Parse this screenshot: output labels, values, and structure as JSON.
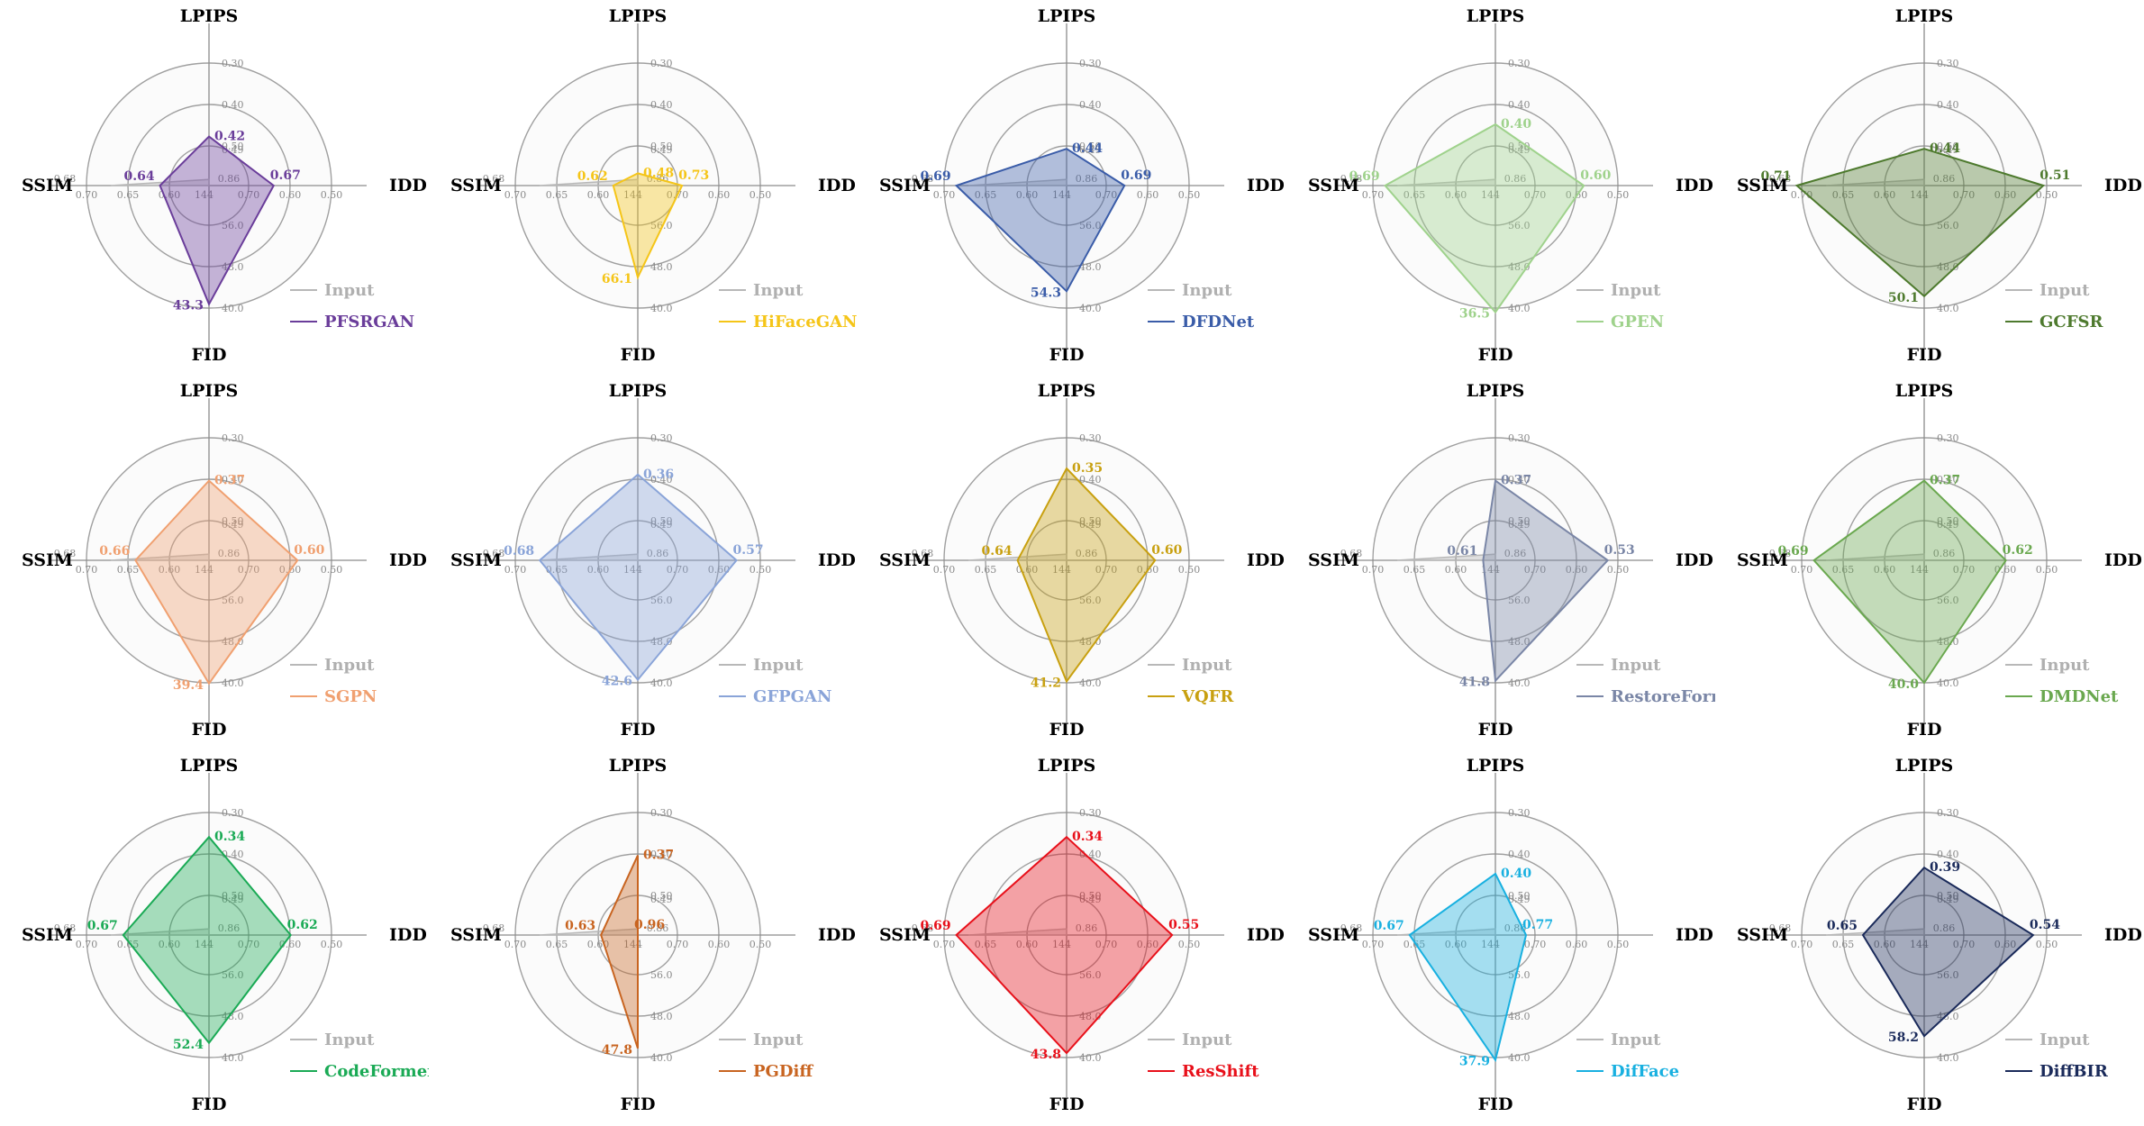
{
  "chart_data": {
    "type": "radar",
    "axes": [
      "LPIPS",
      "IDD",
      "FID",
      "SSIM"
    ],
    "axis_ticks": {
      "LPIPS": [
        "0.30",
        "0.40",
        "0.50",
        "0.49"
      ],
      "IDD": [
        "0.50",
        "0.60",
        "0.70",
        "0.86"
      ],
      "FID": [
        "40.0",
        "48.0",
        "56.0",
        "144"
      ],
      "SSIM": [
        "0.70",
        "0.65",
        "0.60",
        "0.68"
      ]
    },
    "legend_input_label": "Input",
    "input_color": "#b8b8b8",
    "input_values": {
      "LPIPS": 0.49,
      "IDD": 0.86,
      "FID": 144,
      "SSIM": 0.68
    },
    "panels": [
      {
        "method": "PFSRGAN",
        "color": "#6a3d9a",
        "values": {
          "LPIPS": 0.42,
          "IDD": 0.67,
          "FID": 43.3,
          "SSIM": 0.64
        },
        "labels": {
          "LPIPS": "0.42",
          "IDD": "0.67",
          "FID": "43.3",
          "SSIM": "0.64"
        }
      },
      {
        "method": "HiFaceGAN",
        "color": "#f5c518",
        "values": {
          "LPIPS": 0.48,
          "IDD": 0.73,
          "FID": 66.1,
          "SSIM": 0.62
        },
        "labels": {
          "LPIPS": "0.48",
          "IDD": "0.73",
          "FID": "66.1",
          "SSIM": "0.62"
        }
      },
      {
        "method": "DFDNet",
        "color": "#3a5ca8",
        "values": {
          "LPIPS": 0.44,
          "IDD": 0.69,
          "FID": 54.3,
          "SSIM": 0.69
        },
        "labels": {
          "LPIPS": "0.44",
          "IDD": "0.69",
          "FID": "54.3",
          "SSIM": "0.69"
        }
      },
      {
        "method": "GPEN",
        "color": "#9fd28c",
        "values": {
          "LPIPS": 0.4,
          "IDD": 0.6,
          "FID": 36.5,
          "SSIM": 0.69
        },
        "labels": {
          "LPIPS": "0.40",
          "IDD": "0.60",
          "FID": "36.5",
          "SSIM": "0.69"
        }
      },
      {
        "method": "GCFSR",
        "color": "#4e7a2e",
        "values": {
          "LPIPS": 0.44,
          "IDD": 0.51,
          "FID": 50.1,
          "SSIM": 0.71
        },
        "labels": {
          "LPIPS": "0.44",
          "IDD": "0.51",
          "FID": "50.1",
          "SSIM": "0.71"
        }
      },
      {
        "method": "SGPN",
        "color": "#f0a070",
        "values": {
          "LPIPS": 0.37,
          "IDD": 0.6,
          "FID": 39.4,
          "SSIM": 0.66
        },
        "labels": {
          "LPIPS": "0.37",
          "IDD": "0.60",
          "FID": "39.4",
          "SSIM": "0.66"
        }
      },
      {
        "method": "GFPGAN",
        "color": "#8aa4d8",
        "values": {
          "LPIPS": 0.36,
          "IDD": 0.57,
          "FID": 42.6,
          "SSIM": 0.68
        },
        "labels": {
          "LPIPS": "0.36",
          "IDD": "0.57",
          "FID": "42.6",
          "SSIM": "0.68"
        }
      },
      {
        "method": "VQFR",
        "color": "#c8a010",
        "values": {
          "LPIPS": 0.35,
          "IDD": 0.6,
          "FID": 41.2,
          "SSIM": 0.64
        },
        "labels": {
          "LPIPS": "0.35",
          "IDD": "0.60",
          "FID": "41.2",
          "SSIM": "0.64"
        }
      },
      {
        "method": "RestoreFormer",
        "color": "#7a86a6",
        "values": {
          "LPIPS": 0.37,
          "IDD": 0.53,
          "FID": 41.8,
          "SSIM": 0.61
        },
        "labels": {
          "LPIPS": "0.37",
          "IDD": "0.53",
          "FID": "41.8",
          "SSIM": "0.61"
        }
      },
      {
        "method": "DMDNet",
        "color": "#6aa84f",
        "values": {
          "LPIPS": 0.37,
          "IDD": 0.62,
          "FID": 40.0,
          "SSIM": 0.69
        },
        "labels": {
          "LPIPS": "0.37",
          "IDD": "0.62",
          "FID": "40.0",
          "SSIM": "0.69"
        }
      },
      {
        "method": "CodeFormer",
        "color": "#1aaa55",
        "values": {
          "LPIPS": 0.34,
          "IDD": 0.62,
          "FID": 52.4,
          "SSIM": 0.67
        },
        "labels": {
          "LPIPS": "0.34",
          "IDD": "0.62",
          "FID": "52.4",
          "SSIM": "0.67"
        }
      },
      {
        "method": "PGDiff",
        "color": "#c86420",
        "values": {
          "LPIPS": 0.37,
          "IDD": 0.96,
          "FID": 47.8,
          "SSIM": 0.63
        },
        "labels": {
          "LPIPS": "0.37",
          "IDD": "0.96",
          "FID": "47.8",
          "SSIM": "0.63"
        }
      },
      {
        "method": "ResShift",
        "color": "#e8101a",
        "values": {
          "LPIPS": 0.34,
          "IDD": 0.55,
          "FID": 43.8,
          "SSIM": 0.69
        },
        "labels": {
          "LPIPS": "0.34",
          "IDD": "0.55",
          "FID": "43.8",
          "SSIM": "0.69"
        }
      },
      {
        "method": "DifFace",
        "color": "#18b0e0",
        "values": {
          "LPIPS": 0.4,
          "IDD": 0.77,
          "FID": 37.9,
          "SSIM": 0.67
        },
        "labels": {
          "LPIPS": "0.40",
          "IDD": "0.77",
          "FID": "37.9",
          "SSIM": "0.67"
        }
      },
      {
        "method": "DiffBIR",
        "color": "#1a2a5a",
        "values": {
          "LPIPS": 0.39,
          "IDD": 0.54,
          "FID": 58.2,
          "SSIM": 0.65
        },
        "labels": {
          "LPIPS": "0.39",
          "IDD": "0.54",
          "FID": "58.2",
          "SSIM": "0.65"
        }
      }
    ]
  }
}
